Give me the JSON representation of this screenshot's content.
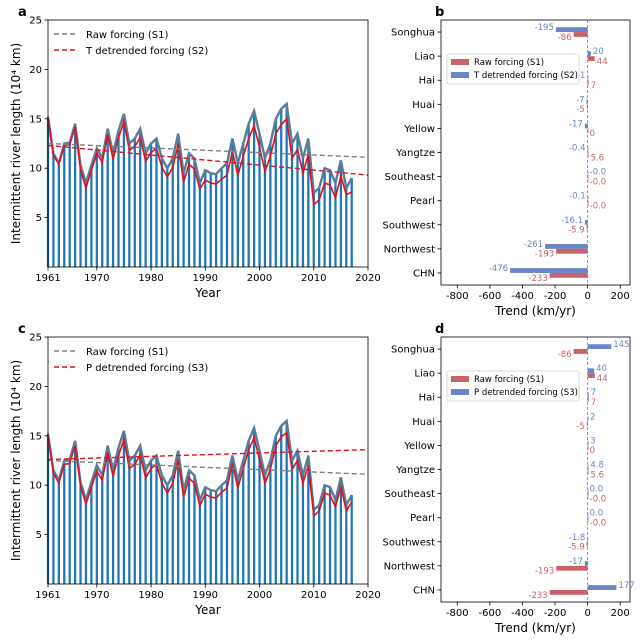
{
  "colors": {
    "bar": "#1f77b4",
    "raw_line": "#5a7d9a",
    "det_line": "#e0121b",
    "raw_trend": "#808080",
    "det_trend": "#e0121b",
    "s1_bar": "#c9636b",
    "s2_bar": "#6a86c6"
  },
  "chart_data": [
    {
      "panel": "a",
      "type": "bar+line",
      "xlabel": "Year",
      "ylabel": "Intermittent river length (10⁴ km)",
      "xlim": [
        1961,
        2020
      ],
      "ylim": [
        0,
        25
      ],
      "xticks": [
        "1961",
        "1970",
        "1980",
        "1990",
        "2000",
        "2010",
        "2020"
      ],
      "yticks": [
        "5",
        "10",
        "15",
        "20",
        "25"
      ],
      "years_start": 1961,
      "raw": [
        15.2,
        11.5,
        10.5,
        12.5,
        12.6,
        14.5,
        10.3,
        8.5,
        10.3,
        12.0,
        11.0,
        14.0,
        11.5,
        13.8,
        15.5,
        12.5,
        13.0,
        14.0,
        11.5,
        12.5,
        13.0,
        11.0,
        10.0,
        11.0,
        13.5,
        9.5,
        11.5,
        11.0,
        8.5,
        9.8,
        9.5,
        9.4,
        10.0,
        10.5,
        13.0,
        10.5,
        12.5,
        14.5,
        15.8,
        13.5,
        11.0,
        12.5,
        15.0,
        16.0,
        16.5,
        12.5,
        13.5,
        11.0,
        13.0,
        7.5,
        8.0,
        10.0,
        9.8,
        8.5,
        10.8,
        8.0,
        9.0
      ],
      "det": [
        15.0,
        11.3,
        10.4,
        12.3,
        12.4,
        14.2,
        9.8,
        8.0,
        9.8,
        11.5,
        10.6,
        13.4,
        10.9,
        13.1,
        14.7,
        11.8,
        12.2,
        13.1,
        10.7,
        11.6,
        12.0,
        10.1,
        9.1,
        10.1,
        12.4,
        8.6,
        10.4,
        9.9,
        7.9,
        8.8,
        8.5,
        8.4,
        8.9,
        9.3,
        11.7,
        9.3,
        11.2,
        13.0,
        14.3,
        12.1,
        9.7,
        11.2,
        13.5,
        14.4,
        15.0,
        11.0,
        11.9,
        9.5,
        11.4,
        6.3,
        6.8,
        8.5,
        8.3,
        7.0,
        9.2,
        7.3,
        7.6
      ],
      "raw_trend": [
        12.5,
        11.1
      ],
      "det_trend": [
        12.3,
        9.3
      ],
      "legend": [
        "Raw forcing (S1)",
        "T detrended forcing (S2)"
      ]
    },
    {
      "panel": "b",
      "type": "barh",
      "xlabel": "Trend (km/yr)",
      "xlim": [
        -900,
        260
      ],
      "xticks": [
        "-800",
        "-600",
        "-400",
        "-200",
        "0",
        "200"
      ],
      "categories": [
        "Songhua",
        "Liao",
        "Hai",
        "Huai",
        "Yellow",
        "Yangtze",
        "Southeast",
        "Pearl",
        "Southwest",
        "Northwest",
        "CHN"
      ],
      "series": [
        {
          "name": "Raw forcing (S1)",
          "values": [
            -86,
            44,
            7,
            -5,
            0,
            5.6,
            -0.0,
            -0.0,
            -5.9,
            -193,
            -233
          ],
          "labels": [
            "-86",
            "44",
            "7",
            "-5",
            "0",
            "5.6",
            "-0.0",
            "-0.0",
            "-5.9",
            "-193",
            "-233"
          ]
        },
        {
          "name": "T detrended forcing (S2)",
          "values": [
            -195,
            20,
            -1,
            -7,
            -17,
            -0.4,
            -0.0,
            -0.1,
            -16.1,
            -261,
            -476
          ],
          "labels": [
            "-195",
            "20",
            "-1",
            "-7",
            "-17",
            "-0.4",
            "-0.0",
            "-0.1",
            "-16.1",
            "-261",
            "-476"
          ]
        }
      ]
    },
    {
      "panel": "c",
      "type": "bar+line",
      "xlabel": "Year",
      "ylabel": "Intermittent river length (10⁴ km)",
      "xlim": [
        1961,
        2020
      ],
      "ylim": [
        0,
        25
      ],
      "xticks": [
        "1961",
        "1970",
        "1980",
        "1990",
        "2000",
        "2010",
        "2020"
      ],
      "yticks": [
        "5",
        "10",
        "15",
        "20",
        "25"
      ],
      "years_start": 1961,
      "raw": [
        15.2,
        11.5,
        10.5,
        12.5,
        12.6,
        14.5,
        10.3,
        8.5,
        10.3,
        12.0,
        11.0,
        14.0,
        11.5,
        13.8,
        15.5,
        12.5,
        13.0,
        14.0,
        11.5,
        12.5,
        13.0,
        11.0,
        10.0,
        11.0,
        13.5,
        9.5,
        11.5,
        11.0,
        8.5,
        9.8,
        9.5,
        9.4,
        10.0,
        10.5,
        13.0,
        10.5,
        12.5,
        14.5,
        15.8,
        13.5,
        11.0,
        12.5,
        15.0,
        16.0,
        16.5,
        12.5,
        13.5,
        11.0,
        13.0,
        7.5,
        8.0,
        10.0,
        9.8,
        8.5,
        10.8,
        8.0,
        9.0
      ],
      "det": [
        14.9,
        11.2,
        10.2,
        12.1,
        12.2,
        14.0,
        9.9,
        8.1,
        9.8,
        11.4,
        10.5,
        13.3,
        10.9,
        13.0,
        14.6,
        11.7,
        12.1,
        13.1,
        10.7,
        11.7,
        12.1,
        10.2,
        9.2,
        10.2,
        12.6,
        8.8,
        10.7,
        10.2,
        7.9,
        9.1,
        8.8,
        8.7,
        9.3,
        9.7,
        12.2,
        9.7,
        11.7,
        13.6,
        14.8,
        12.6,
        10.2,
        11.6,
        14.0,
        14.9,
        15.3,
        11.6,
        12.5,
        10.2,
        12.0,
        6.9,
        7.4,
        9.2,
        9.0,
        7.8,
        9.9,
        7.4,
        8.3
      ],
      "raw_trend": [
        12.5,
        11.1
      ],
      "det_trend": [
        12.6,
        13.6
      ],
      "legend": [
        "Raw forcing (S1)",
        "P detrended forcing (S3)"
      ]
    },
    {
      "panel": "d",
      "type": "barh",
      "xlabel": "Trend (km/yr)",
      "xlim": [
        -900,
        260
      ],
      "xticks": [
        "-800",
        "-600",
        "-400",
        "-200",
        "0",
        "200"
      ],
      "categories": [
        "Songhua",
        "Liao",
        "Hai",
        "Huai",
        "Yellow",
        "Yangtze",
        "Southeast",
        "Pearl",
        "Southwest",
        "Northwest",
        "CHN"
      ],
      "series": [
        {
          "name": "Raw forcing (S1)",
          "values": [
            -86,
            44,
            7,
            -5,
            0,
            5.6,
            -0.0,
            -0.0,
            -5.9,
            -193,
            -233
          ],
          "labels": [
            "-86",
            "44",
            "7",
            "-5",
            "0",
            "5.6",
            "-0.0",
            "-0.0",
            "-5.9",
            "-193",
            "-233"
          ]
        },
        {
          "name": "P detrended forcing (S3)",
          "values": [
            145,
            40,
            7,
            2,
            3,
            4.8,
            0.0,
            0.0,
            -1.8,
            -17,
            177
          ],
          "labels": [
            "145",
            "40",
            "7",
            "2",
            "3",
            "4.8",
            "0.0",
            "0.0",
            "-1.8",
            "-17",
            "177"
          ]
        }
      ]
    }
  ]
}
